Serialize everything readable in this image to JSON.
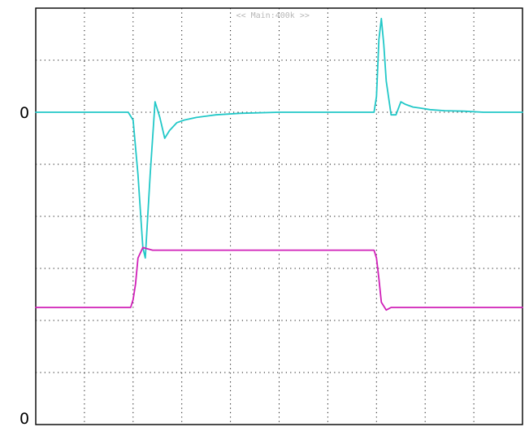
{
  "chart_data": {
    "type": "line",
    "title": "",
    "xlabel": "",
    "ylabel": "",
    "grid": true,
    "grid_divisions": {
      "horizontal": 10,
      "vertical": 8
    },
    "ylim": [
      0,
      8
    ],
    "xlim": [
      0,
      10
    ],
    "timebase_banner": "<< Main:400k >>",
    "channel_labels": [
      {
        "text": "0",
        "y": 6.0
      },
      {
        "text": "0",
        "y": 0.0
      }
    ],
    "colors": {
      "channel1": "#22c8c8",
      "channel2": "#d020b8"
    },
    "series": [
      {
        "color": "#22c8c8",
        "x": [
          0,
          1.0,
          1.9,
          2.0,
          2.1,
          2.2,
          2.25,
          2.35,
          2.45,
          2.55,
          2.65,
          2.75,
          2.9,
          3.05,
          3.3,
          3.7,
          4.2,
          5.0,
          6.0,
          6.95,
          7.0,
          7.05,
          7.1,
          7.15,
          7.2,
          7.3,
          7.4,
          7.5,
          7.6,
          7.75,
          7.9,
          8.1,
          8.4,
          8.8,
          9.2,
          10.0
        ],
        "values": [
          6.0,
          6.0,
          6.0,
          5.85,
          4.8,
          3.4,
          3.2,
          4.8,
          6.2,
          5.9,
          5.5,
          5.65,
          5.8,
          5.85,
          5.9,
          5.95,
          5.98,
          6.0,
          6.0,
          6.0,
          6.3,
          7.4,
          7.8,
          7.3,
          6.6,
          5.95,
          5.95,
          6.2,
          6.15,
          6.1,
          6.08,
          6.05,
          6.03,
          6.02,
          6.0,
          6.0
        ]
      },
      {
        "color": "#d020b8",
        "x": [
          0,
          1.95,
          2.0,
          2.05,
          2.1,
          2.2,
          2.4,
          3.0,
          4.0,
          5.0,
          6.0,
          6.95,
          7.0,
          7.05,
          7.1,
          7.2,
          7.3,
          7.5,
          8.0,
          9.0,
          10.0
        ],
        "values": [
          2.25,
          2.25,
          2.4,
          2.7,
          3.2,
          3.4,
          3.35,
          3.35,
          3.35,
          3.35,
          3.35,
          3.35,
          3.2,
          2.8,
          2.35,
          2.2,
          2.25,
          2.25,
          2.25,
          2.25,
          2.25
        ]
      }
    ]
  }
}
